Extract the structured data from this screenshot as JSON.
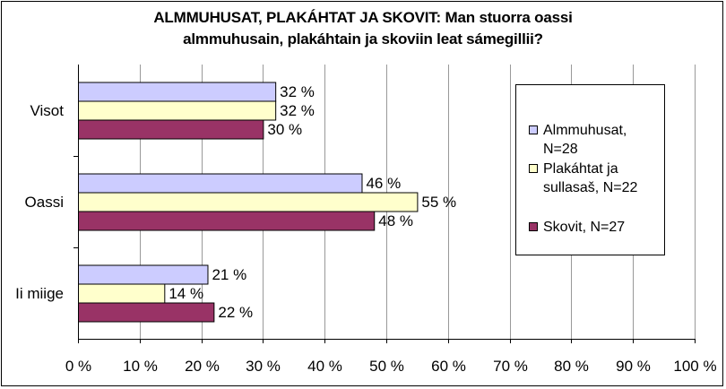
{
  "chart_data": {
    "type": "bar",
    "orientation": "horizontal",
    "title_lines": [
      "ALMMUHUSAT, PLAKÁHTAT JA SKOVIT: Man stuorra oassi",
      "almmuhusain, plakáhtain ja skoviin leat sámegillii?"
    ],
    "categories": [
      "Visot",
      "Oassi",
      "Ii miige"
    ],
    "series": [
      {
        "name": "Almmuhusat, N=28",
        "label_lines": [
          "Almmuhusat,",
          "N=28"
        ],
        "values": [
          32,
          46,
          21
        ],
        "color": "#ccccff"
      },
      {
        "name": "Plakáhtat ja sullasaš, N=22",
        "label_lines": [
          "Plakáhtat ja",
          "sullasaš, N=22"
        ],
        "values": [
          32,
          55,
          14
        ],
        "color": "#ffffcc"
      },
      {
        "name": "Skovit, N=27",
        "label_lines": [
          "Skovit, N=27"
        ],
        "values": [
          30,
          48,
          22
        ],
        "color": "#993366"
      }
    ],
    "xlim": [
      0,
      100
    ],
    "xticks": [
      0,
      10,
      20,
      30,
      40,
      50,
      60,
      70,
      80,
      90,
      100
    ],
    "tick_suffix": " %",
    "value_suffix": " %",
    "grid": true,
    "legend_position": "right"
  }
}
